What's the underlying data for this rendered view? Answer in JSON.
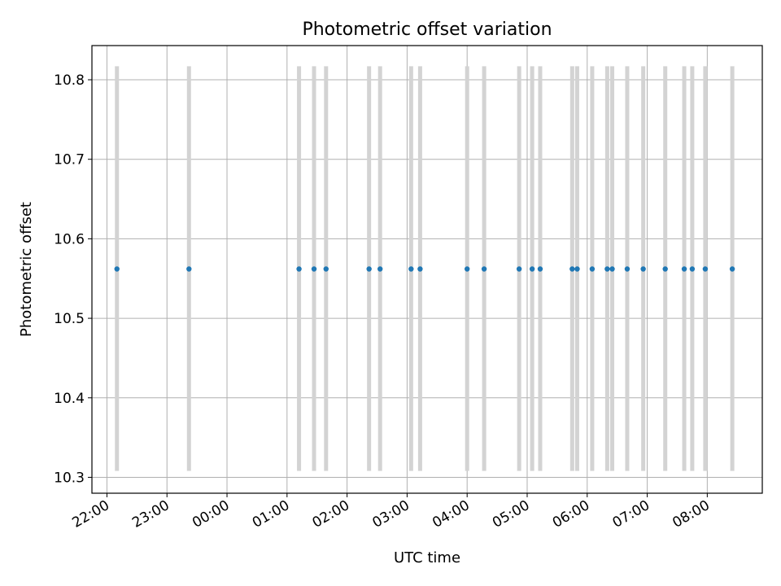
{
  "chart_data": {
    "type": "scatter",
    "title": "Photometric offset variation",
    "xlabel": "UTC time",
    "ylabel": "Photometric offset",
    "grid": true,
    "colors": {
      "points": "#1f77b4",
      "errorbars": "#d3d3d3",
      "grid": "#b0b0b0",
      "axes": "#000000"
    },
    "x_unit": "UTC time (HH:MM)",
    "xlim": [
      "21:45",
      "08:55"
    ],
    "ylim": [
      10.28,
      10.843
    ],
    "xticks": [
      "22:00",
      "23:00",
      "00:00",
      "01:00",
      "02:00",
      "03:00",
      "04:00",
      "05:00",
      "06:00",
      "07:00",
      "08:00"
    ],
    "yticks": [
      10.3,
      10.4,
      10.5,
      10.6,
      10.7,
      10.8
    ],
    "ytick_labels": [
      "10.3",
      "10.4",
      "10.5",
      "10.6",
      "10.7",
      "10.8"
    ],
    "x": [
      "22:10",
      "23:22",
      "01:12",
      "01:27",
      "01:39",
      "02:22",
      "02:33",
      "03:04",
      "03:13",
      "04:00",
      "04:17",
      "04:52",
      "05:05",
      "05:13",
      "05:45",
      "05:50",
      "06:05",
      "06:20",
      "06:25",
      "06:40",
      "06:56",
      "07:18",
      "07:37",
      "07:45",
      "07:58",
      "08:25"
    ],
    "y": [
      10.562,
      10.562,
      10.562,
      10.562,
      10.562,
      10.562,
      10.562,
      10.562,
      10.562,
      10.562,
      10.562,
      10.562,
      10.562,
      10.562,
      10.562,
      10.562,
      10.562,
      10.562,
      10.562,
      10.562,
      10.562,
      10.562,
      10.562,
      10.562,
      10.562,
      10.562
    ],
    "error_low": 10.308,
    "error_high": 10.817
  }
}
